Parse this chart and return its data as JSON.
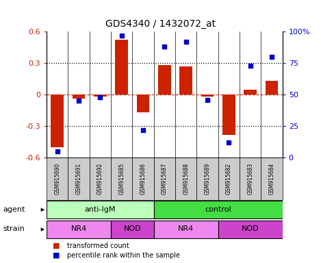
{
  "title": "GDS4340 / 1432072_at",
  "samples": [
    "GSM915690",
    "GSM915691",
    "GSM915692",
    "GSM915685",
    "GSM915686",
    "GSM915687",
    "GSM915688",
    "GSM915689",
    "GSM915682",
    "GSM915683",
    "GSM915684"
  ],
  "bar_values": [
    -0.5,
    -0.04,
    -0.02,
    0.52,
    -0.17,
    0.28,
    0.27,
    -0.02,
    -0.38,
    0.05,
    0.13
  ],
  "dot_pct": [
    5,
    45,
    48,
    97,
    22,
    88,
    92,
    46,
    12,
    73,
    80
  ],
  "bar_color": "#cc2200",
  "dot_color": "#0000cc",
  "ylim_left": [
    -0.6,
    0.6
  ],
  "ylim_right": [
    0,
    100
  ],
  "yticks_left": [
    -0.6,
    -0.3,
    0.0,
    0.3,
    0.6
  ],
  "ytick_labels_left": [
    "-0.6",
    "-0.3",
    "0",
    "0.3",
    "0.6"
  ],
  "yticks_right": [
    0,
    25,
    50,
    75,
    100
  ],
  "ytick_labels_right": [
    "0",
    "25",
    "50",
    "75",
    "100%"
  ],
  "hlines_dotted": [
    -0.3,
    0.3
  ],
  "hlines_dashed": [
    0.0
  ],
  "agent_groups": [
    {
      "label": "anti-IgM",
      "start": 0,
      "end": 5,
      "color": "#bbffbb"
    },
    {
      "label": "control",
      "start": 5,
      "end": 11,
      "color": "#44dd44"
    }
  ],
  "strain_groups": [
    {
      "label": "NR4",
      "start": 0,
      "end": 3,
      "color": "#ee88ee"
    },
    {
      "label": "NOD",
      "start": 3,
      "end": 5,
      "color": "#cc44cc"
    },
    {
      "label": "NR4",
      "start": 5,
      "end": 8,
      "color": "#ee88ee"
    },
    {
      "label": "NOD",
      "start": 8,
      "end": 11,
      "color": "#cc44cc"
    }
  ],
  "legend_bar": "transformed count",
  "legend_dot": "percentile rank within the sample",
  "label_agent": "agent",
  "label_strain": "strain",
  "sample_box_color": "#cccccc"
}
